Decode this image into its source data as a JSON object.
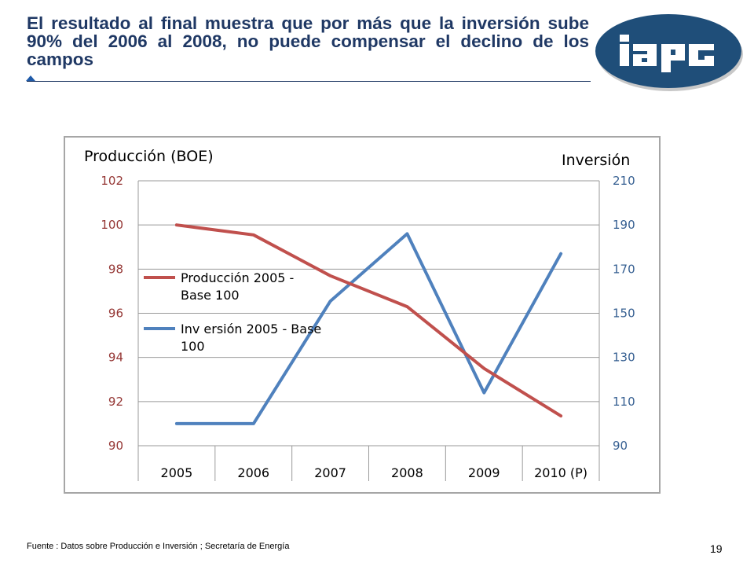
{
  "slide": {
    "title": "El resultado al final muestra que por más que la inversión sube 90% del 2006 al 2008, no puede compensar el declino de los campos",
    "logo_text": "iapg",
    "footer": "Fuente :  Datos sobre Producción  e Inversión ; Secretaría  de  Energía",
    "page_number": "19",
    "colors": {
      "title": "#1f3864",
      "logo_bg": "#1f4e79",
      "logo_text": "#ffffff"
    }
  },
  "chart_data": {
    "type": "line",
    "categories": [
      "2005",
      "2006",
      "2007",
      "2008",
      "2009",
      "2010 (P)"
    ],
    "y_left": {
      "label": "Producción (BOE)",
      "ticks": [
        "102",
        "100",
        "98",
        "96",
        "94",
        "92",
        "90"
      ],
      "ylim": [
        90,
        102
      ],
      "color": "#953735"
    },
    "y_right": {
      "label": "Inversión",
      "ticks": [
        "210",
        "190",
        "170",
        "150",
        "130",
        "110",
        "90"
      ],
      "ylim": [
        90,
        210
      ],
      "color": "#376092"
    },
    "series": [
      {
        "name": "Producción 2005 - Base 100",
        "axis": "left",
        "color": "#c0504d",
        "values": [
          100,
          99.55,
          97.7,
          96.3,
          93.5,
          91.35
        ]
      },
      {
        "name": "Inv ersión 2005 - Base 100",
        "axis": "right",
        "color": "#4f81bd",
        "values": [
          100,
          100,
          155.5,
          186,
          114,
          177
        ]
      }
    ],
    "grid": true,
    "legend": "left"
  }
}
